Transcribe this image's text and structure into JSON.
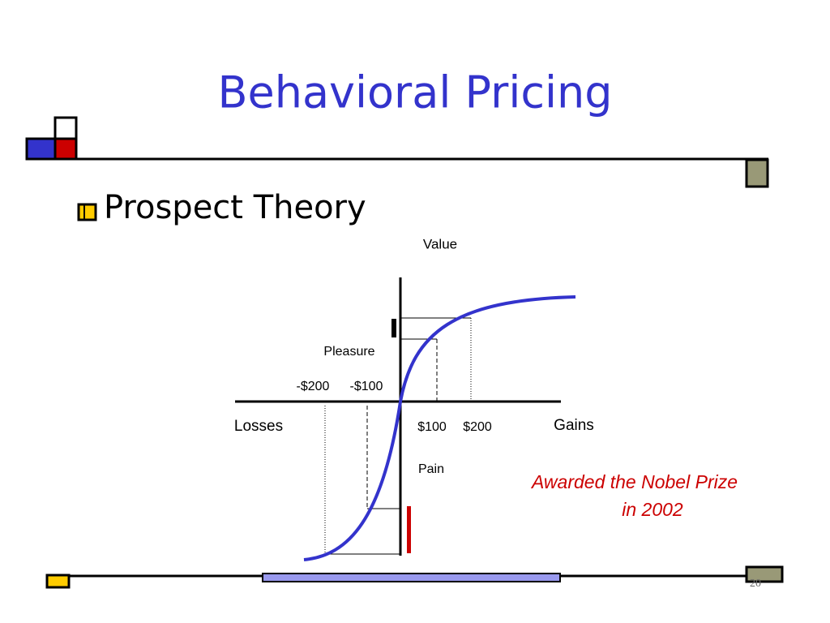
{
  "slide": {
    "title": "Behavioral Pricing",
    "bullet": "Prospect Theory",
    "page_number": "20"
  },
  "diagram": {
    "y_axis_label": "Value",
    "upper_label": "Pleasure",
    "lower_label": "Pain",
    "left_label": "Losses",
    "right_label": "Gains",
    "negative_ticks": [
      "-$200",
      "-$100"
    ],
    "positive_ticks": [
      "$100",
      "$200"
    ]
  },
  "note": {
    "lines": [
      "Awarded the Nobel Prize",
      "in 2002"
    ]
  }
}
